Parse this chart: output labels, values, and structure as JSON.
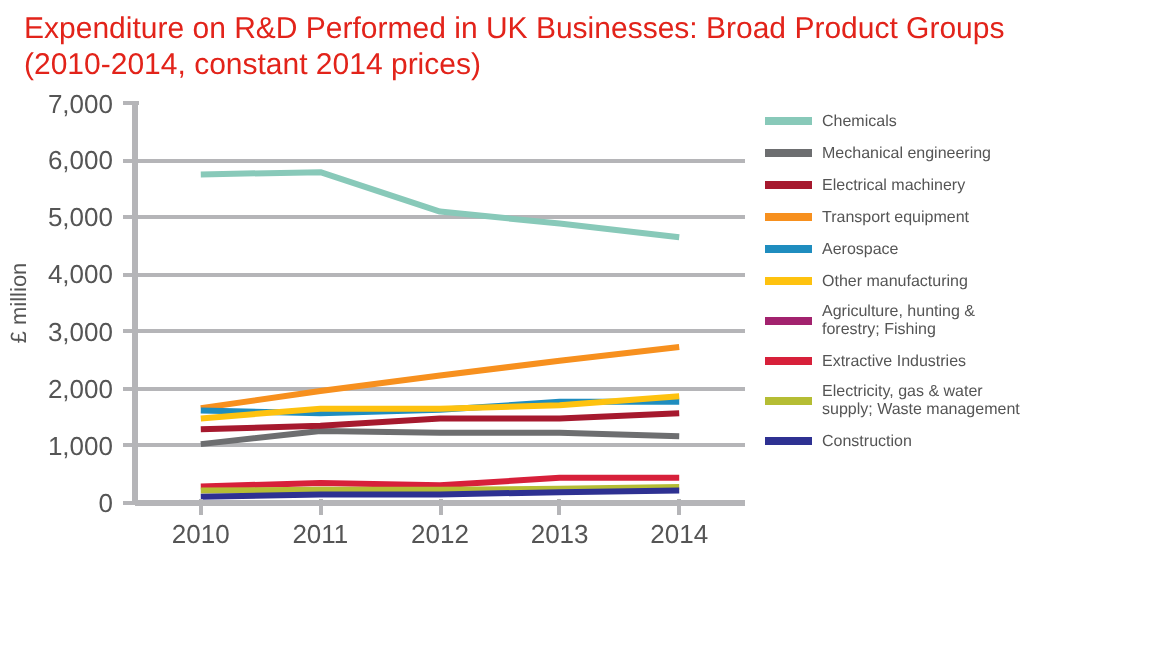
{
  "chart_data": {
    "type": "line",
    "title": "Expenditure on R&D Performed in UK Businesses: Broad Product Groups (2010-2014, constant 2014 prices)",
    "ylabel": "£ million",
    "categories": [
      "2010",
      "2011",
      "2012",
      "2013",
      "2014"
    ],
    "ylim": [
      0,
      7000
    ],
    "yticks": [
      0,
      {
        "value": 1000,
        "label": "1,000"
      },
      {
        "value": 2000,
        "label": "2,000"
      },
      {
        "value": 3000,
        "label": "3,000"
      },
      {
        "value": 4000,
        "label": "4,000"
      },
      {
        "value": 5000,
        "label": "5,000"
      },
      {
        "value": 6000,
        "label": "6,000"
      },
      {
        "value": 7000,
        "label": "7,000"
      }
    ],
    "grid": "y",
    "legend": "right",
    "marker": "none",
    "line_style": "solid",
    "series": [
      {
        "name": "Chemicals",
        "color": "#88c9b9",
        "values": [
          5750,
          5790,
          5100,
          4890,
          4650
        ]
      },
      {
        "name": "Mechanical engineering",
        "color": "#6d6e70",
        "values": [
          1030,
          1260,
          1230,
          1230,
          1170
        ]
      },
      {
        "name": "Electrical machinery",
        "color": "#a6192e",
        "values": [
          1290,
          1350,
          1480,
          1480,
          1570
        ]
      },
      {
        "name": "Transport equipment",
        "color": "#f7901e",
        "values": [
          1660,
          1960,
          2230,
          2490,
          2730
        ]
      },
      {
        "name": "Aerospace",
        "color": "#1f8dbf",
        "values": [
          1620,
          1570,
          1630,
          1770,
          1770
        ]
      },
      {
        "name": "Other manufacturing",
        "color": "#fec20f",
        "values": [
          1480,
          1650,
          1650,
          1710,
          1870
        ]
      },
      {
        "name": "Agriculture, hunting & forestry; Fishing",
        "color": "#a2226e",
        "values": [
          null,
          null,
          null,
          null,
          null
        ]
      },
      {
        "name": "Extractive Industries",
        "color": "#d7203a",
        "values": [
          290,
          350,
          310,
          440,
          440
        ]
      },
      {
        "name": "Electricity, gas & water supply; Waste management",
        "color": "#b5bd34",
        "values": [
          220,
          230,
          230,
          250,
          280
        ]
      },
      {
        "name": "Construction",
        "color": "#2e3192",
        "values": [
          110,
          150,
          150,
          190,
          220
        ]
      }
    ]
  }
}
